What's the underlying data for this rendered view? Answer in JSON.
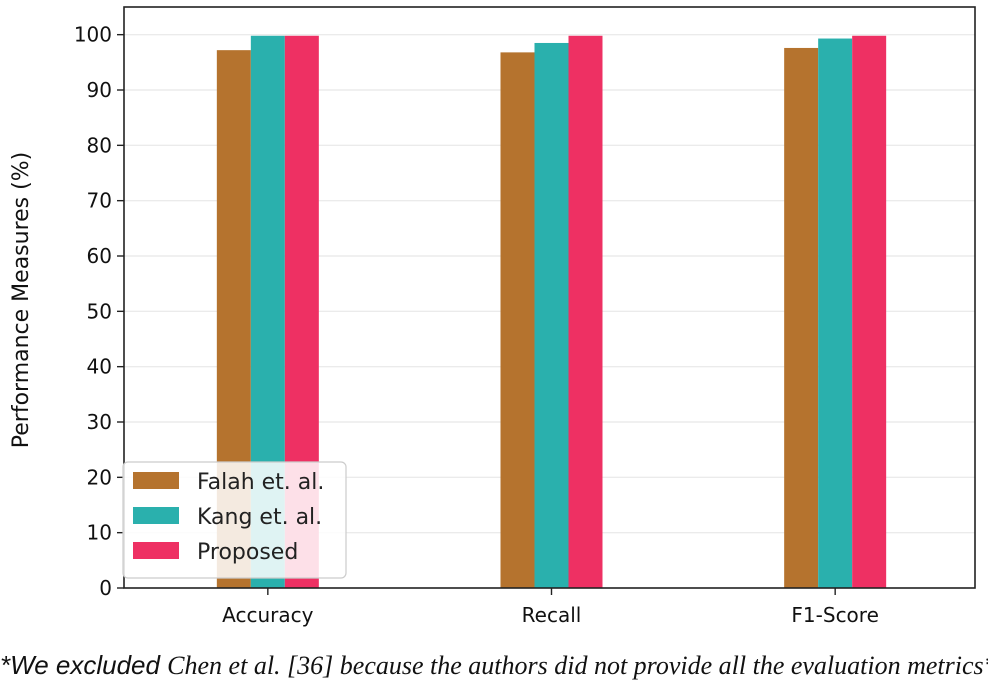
{
  "chart_data": {
    "type": "bar",
    "title": "",
    "xlabel": "",
    "ylabel": "Performance Measures (%)",
    "ylim": [
      0,
      105
    ],
    "yticks": [
      0,
      10,
      20,
      30,
      40,
      50,
      60,
      70,
      80,
      90,
      100
    ],
    "categories": [
      "Accuracy",
      "Recall",
      "F1-Score"
    ],
    "series": [
      {
        "name": "Falah et. al.",
        "color": "#b5732e",
        "values": [
          97.2,
          96.8,
          97.6
        ]
      },
      {
        "name": "Kang et. al.",
        "color": "#2ab0ad",
        "values": [
          99.8,
          98.5,
          99.3
        ]
      },
      {
        "name": "Proposed",
        "color": "#ee3063",
        "values": [
          99.8,
          99.8,
          99.8
        ]
      }
    ],
    "grid": true,
    "legend": "lower-left"
  },
  "footnote": {
    "part1": "*We excluded ",
    "part2": "Chen et al. [36] because the authors did not provide all the evaluation metrics*"
  }
}
